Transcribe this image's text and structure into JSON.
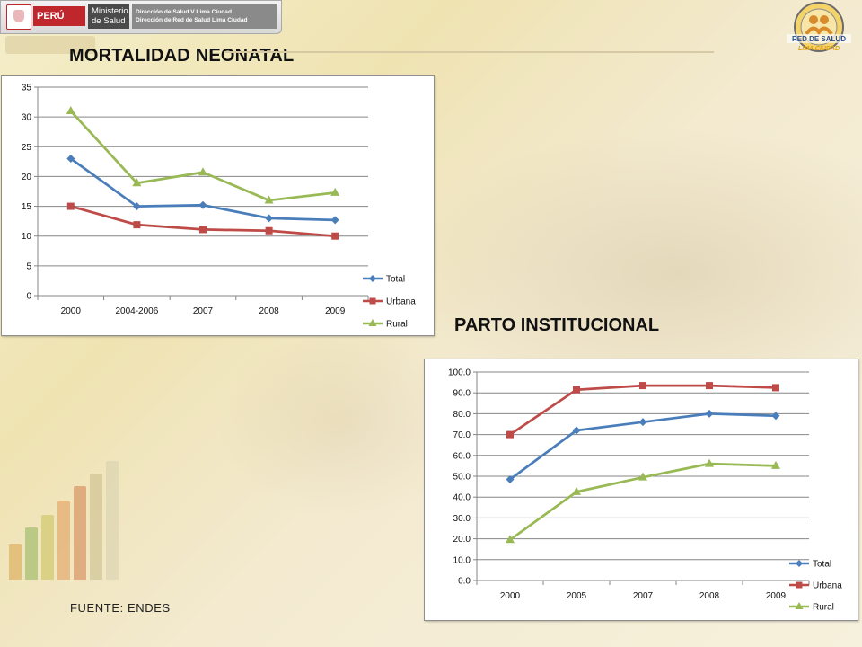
{
  "header": {
    "country_label": "PERÚ",
    "ministry_label_line1": "Ministerio",
    "ministry_label_line2": "de Salud",
    "direction_line1": "Dirección de Salud V Lima Ciudad",
    "direction_line2": "Dirección de Red de Salud Lima Ciudad",
    "logo_text_line1": "RED DE SALUD",
    "logo_text_line2": "LIMA CIUDAD"
  },
  "titles": {
    "neonatal": "MORTALIDAD NEONATAL",
    "parto": "PARTO INSTITUCIONAL"
  },
  "source": "FUENTE: ENDES",
  "colors": {
    "total": "#4a7ebb",
    "urbana": "#be4b48",
    "rural": "#98b954",
    "gridline": "#868686"
  },
  "chart_data": [
    {
      "type": "line",
      "title": "",
      "categories": [
        "2000",
        "2004-2006",
        "2007",
        "2008",
        "2009"
      ],
      "series": [
        {
          "name": "Total",
          "values": [
            23,
            15,
            15.2,
            13,
            12.7
          ],
          "marker": "diamond"
        },
        {
          "name": "Urbana",
          "values": [
            15,
            11.9,
            11.1,
            10.9,
            10
          ],
          "marker": "square"
        },
        {
          "name": "Rural",
          "values": [
            31,
            18.9,
            20.7,
            16,
            17.3
          ],
          "marker": "triangle"
        }
      ],
      "ylim": [
        0,
        35
      ],
      "yticks": [
        0,
        5,
        10,
        15,
        20,
        25,
        30,
        35
      ],
      "ytick_labels": [
        "0",
        "5",
        "10",
        "15",
        "20",
        "25",
        "30",
        "35"
      ],
      "grid": true,
      "legend": "right-bottom"
    },
    {
      "type": "line",
      "title": "",
      "categories": [
        "2000",
        "2005",
        "2007",
        "2008",
        "2009"
      ],
      "series": [
        {
          "name": "Total",
          "values": [
            48.5,
            72,
            76,
            80,
            79
          ],
          "marker": "diamond"
        },
        {
          "name": "Urbana",
          "values": [
            70,
            91.5,
            93.5,
            93.5,
            92.5
          ],
          "marker": "square"
        },
        {
          "name": "Rural",
          "values": [
            19.5,
            42.5,
            49.5,
            56,
            55
          ],
          "marker": "triangle"
        }
      ],
      "ylim": [
        0,
        100
      ],
      "yticks": [
        0,
        10,
        20,
        30,
        40,
        50,
        60,
        70,
        80,
        90,
        100
      ],
      "ytick_labels": [
        "0.0",
        "10.0",
        "20.0",
        "30.0",
        "40.0",
        "50.0",
        "60.0",
        "70.0",
        "80.0",
        "90.0",
        "100.0"
      ],
      "grid": true,
      "legend": "right-bottom"
    }
  ]
}
